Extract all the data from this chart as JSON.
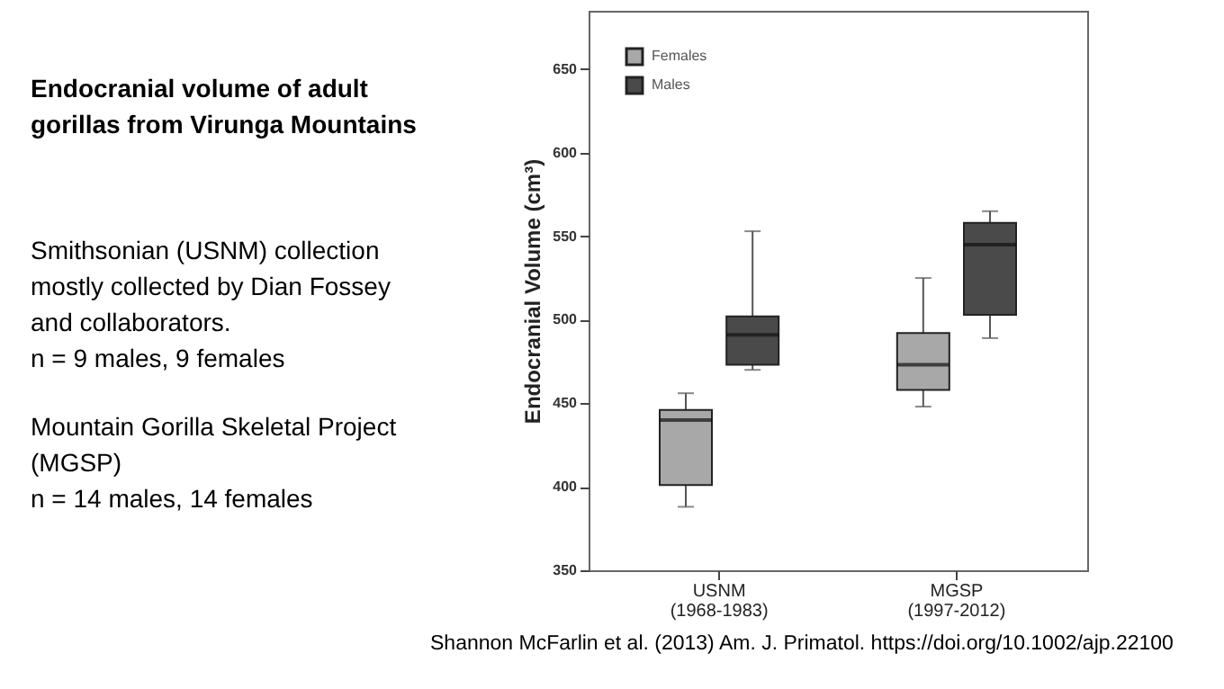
{
  "chart_data": {
    "type": "box",
    "title": "Endocranial volume of adult gorillas from Virunga Mountains",
    "categories": [
      "USNM\n(1968-1983)",
      "MGSP\n(1997-2012)"
    ],
    "ylabel": "Endocranial Volume (cm³)",
    "ylim": [
      350,
      685
    ],
    "yticks": [
      350,
      400,
      450,
      500,
      550,
      600,
      650
    ],
    "grid": false,
    "legend": "top left",
    "series": [
      {
        "name": "Females",
        "color": "#a8a8a8",
        "boxes": [
          {
            "low": 388,
            "q1": 401,
            "median": 440,
            "q3": 446,
            "high": 456
          },
          {
            "low": 448,
            "q1": 458,
            "median": 473,
            "q3": 492,
            "high": 525
          }
        ]
      },
      {
        "name": "Males",
        "color": "#4a4a4a",
        "boxes": [
          {
            "low": 470,
            "q1": 473,
            "median": 491,
            "q3": 502,
            "high": 553
          },
          {
            "low": 489,
            "q1": 503,
            "median": 545,
            "q3": 558,
            "high": 565
          }
        ]
      }
    ],
    "annotations": [
      "Smithsonian (USNM) collection mostly collected by Dian Fossey and collaborators.",
      "n = 9 males, 9 females",
      "Mountain Gorilla Skeletal Project (MGSP)",
      "n = 14 males, 14 females",
      "Shannon McFarlin et al. (2013) Am. J. Primatol. https://doi.org/10.1002/ajp.22100"
    ]
  }
}
